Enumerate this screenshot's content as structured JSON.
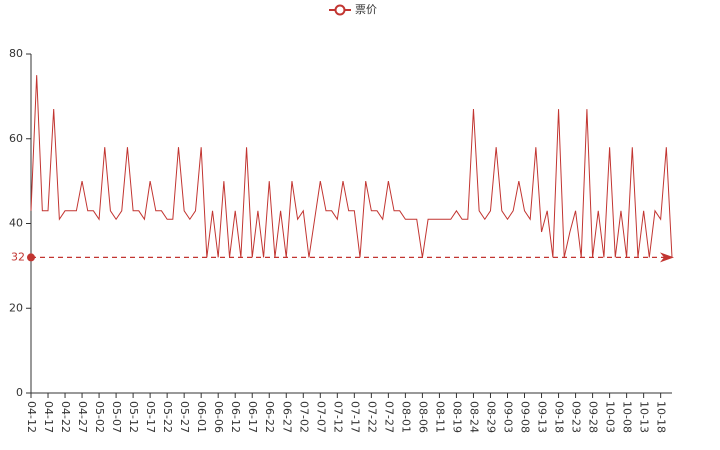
{
  "chart_data": {
    "type": "line",
    "categories": [
      "04-12",
      null,
      null,
      "04-17",
      null,
      null,
      "04-22",
      null,
      null,
      "04-27",
      null,
      null,
      "05-02",
      null,
      null,
      "05-07",
      null,
      null,
      "05-12",
      null,
      null,
      "05-17",
      null,
      null,
      "05-22",
      null,
      null,
      "05-27",
      null,
      null,
      "06-01",
      null,
      null,
      "06-06",
      null,
      null,
      "06-12",
      null,
      null,
      "06-17",
      null,
      null,
      "06-22",
      null,
      null,
      "06-27",
      null,
      null,
      "07-02",
      null,
      null,
      "07-07",
      null,
      null,
      "07-12",
      null,
      null,
      "07-17",
      null,
      null,
      "07-22",
      null,
      null,
      "07-27",
      null,
      null,
      "08-01",
      null,
      null,
      "08-06",
      null,
      null,
      "08-11",
      null,
      null,
      "08-19",
      null,
      null,
      "08-24",
      null,
      null,
      "08-29",
      null,
      null,
      "09-03",
      null,
      null,
      "09-08",
      null,
      null,
      "09-13",
      null,
      null,
      "09-18",
      null,
      null,
      "09-23",
      null,
      null,
      "09-28",
      null,
      null,
      "10-03",
      null,
      null,
      "10-08",
      null,
      null,
      "10-13",
      null,
      null,
      "10-18",
      null,
      null
    ],
    "series": [
      {
        "name": "票价",
        "color": "#c23531",
        "values": [
          43,
          75,
          43,
          43,
          67,
          41,
          43,
          43,
          43,
          50,
          43,
          43,
          41,
          58,
          43,
          41,
          43,
          58,
          43,
          43,
          41,
          50,
          43,
          43,
          41,
          41,
          58,
          43,
          41,
          43,
          58,
          32,
          43,
          32,
          50,
          32,
          43,
          32,
          58,
          32,
          43,
          32,
          50,
          32,
          43,
          32,
          50,
          41,
          43,
          32,
          41,
          50,
          43,
          43,
          41,
          50,
          43,
          43,
          32,
          50,
          43,
          43,
          41,
          50,
          43,
          43,
          41,
          41,
          41,
          32,
          41,
          41,
          41,
          41,
          41,
          43,
          41,
          41,
          67,
          43,
          41,
          43,
          58,
          43,
          41,
          43,
          50,
          43,
          41,
          58,
          38,
          43,
          32,
          67,
          32,
          38,
          43,
          32,
          67,
          32,
          43,
          32,
          58,
          32,
          43,
          32,
          58,
          32,
          43,
          32,
          43,
          41,
          58,
          32
        ]
      }
    ],
    "mark_line": {
      "value": 32
    },
    "ylim": [
      0,
      80
    ],
    "yticks": [
      0,
      20,
      40,
      60,
      80
    ],
    "grid": false
  }
}
